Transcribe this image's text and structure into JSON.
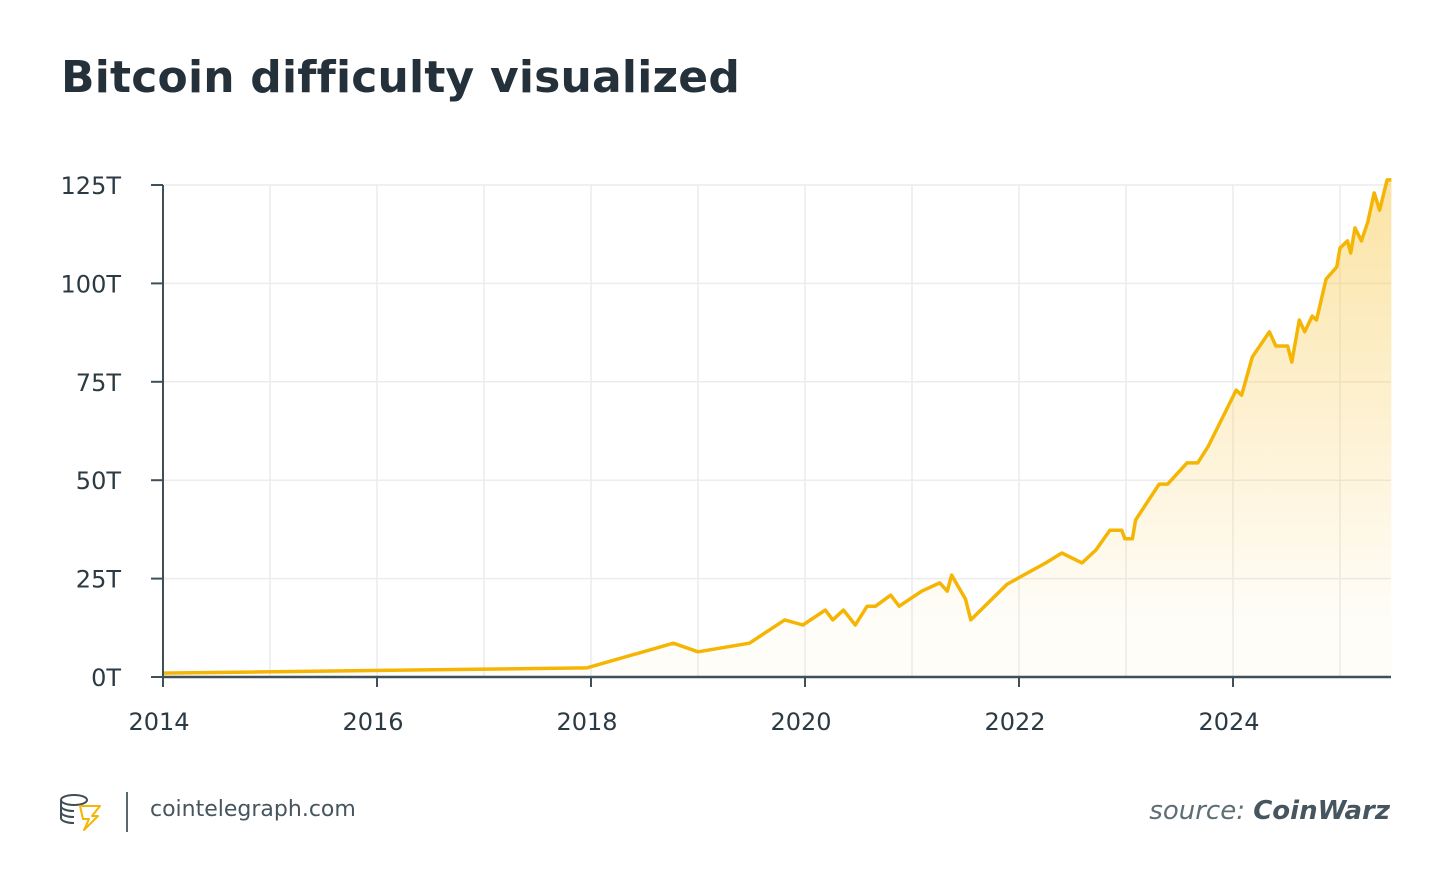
{
  "title": "Bitcoin difficulty visualized",
  "footer": {
    "site": "cointelegraph.com",
    "source_prefix": "source:",
    "source_name": "CoinWarz"
  },
  "colors": {
    "line": "#F5B505",
    "axis": "#3f505a",
    "grid": "#ececec",
    "text": "#24313a"
  },
  "chart_data": {
    "type": "area",
    "title": "Bitcoin difficulty visualized",
    "xlabel": "",
    "ylabel": "",
    "xlim": [
      2014,
      2025.5
    ],
    "ylim": [
      0,
      125
    ],
    "x_ticks": [
      2014,
      2016,
      2018,
      2020,
      2022,
      2024
    ],
    "x_tick_labels": [
      "2014",
      "2016",
      "2018",
      "2020",
      "2022",
      "2024"
    ],
    "y_ticks": [
      0,
      25,
      50,
      75,
      100,
      125
    ],
    "y_tick_labels": [
      "0T",
      "25T",
      "50T",
      "75T",
      "100T",
      "125T"
    ],
    "grid": true,
    "unit": "T",
    "x": [
      2014.0,
      2017.96,
      2018.77,
      2019.0,
      2019.48,
      2019.81,
      2019.98,
      2020.19,
      2020.26,
      2020.36,
      2020.47,
      2020.58,
      2020.66,
      2020.8,
      2020.88,
      2021.09,
      2021.26,
      2021.33,
      2021.37,
      2021.5,
      2021.55,
      2021.89,
      2022.25,
      2022.4,
      2022.59,
      2022.72,
      2022.85,
      2022.96,
      2022.99,
      2023.06,
      2023.09,
      2023.31,
      2023.39,
      2023.57,
      2023.67,
      2023.77,
      2024.03,
      2024.08,
      2024.18,
      2024.34,
      2024.4,
      2024.51,
      2024.55,
      2024.62,
      2024.67,
      2024.74,
      2024.78,
      2024.87,
      2024.97,
      2025.0,
      2025.07,
      2025.1,
      2025.14,
      2025.2,
      2025.26,
      2025.32,
      2025.37,
      2025.44,
      2025.48
    ],
    "y": [
      1.0,
      2.3,
      8.6,
      6.4,
      8.6,
      14.5,
      13.2,
      17.0,
      14.5,
      17.0,
      13.2,
      18.0,
      18.0,
      20.8,
      18.0,
      21.8,
      23.9,
      21.8,
      25.9,
      19.8,
      14.5,
      23.6,
      29.0,
      31.5,
      29.0,
      32.3,
      37.3,
      37.3,
      35.1,
      35.1,
      39.9,
      49.0,
      49.0,
      54.4,
      54.4,
      58.7,
      72.9,
      71.6,
      81.3,
      87.7,
      84.1,
      84.1,
      80.0,
      90.7,
      87.7,
      91.7,
      90.7,
      101.1,
      104.2,
      109.0,
      110.8,
      107.7,
      114.1,
      110.8,
      115.6,
      123.0,
      118.6,
      126.3,
      126.3
    ]
  }
}
